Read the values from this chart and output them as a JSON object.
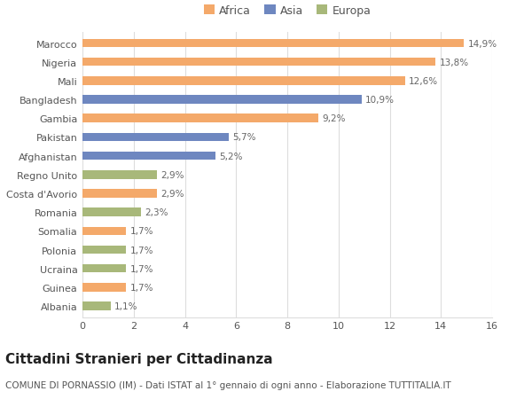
{
  "categories": [
    "Albania",
    "Guinea",
    "Ucraina",
    "Polonia",
    "Somalia",
    "Romania",
    "Costa d'Avorio",
    "Regno Unito",
    "Afghanistan",
    "Pakistan",
    "Gambia",
    "Bangladesh",
    "Mali",
    "Nigeria",
    "Marocco"
  ],
  "values": [
    1.1,
    1.7,
    1.7,
    1.7,
    1.7,
    2.3,
    2.9,
    2.9,
    5.2,
    5.7,
    9.2,
    10.9,
    12.6,
    13.8,
    14.9
  ],
  "colors": [
    "#a8b87a",
    "#f4a96a",
    "#a8b87a",
    "#a8b87a",
    "#f4a96a",
    "#a8b87a",
    "#f4a96a",
    "#a8b87a",
    "#6e87c0",
    "#6e87c0",
    "#f4a96a",
    "#6e87c0",
    "#f4a96a",
    "#f4a96a",
    "#f4a96a"
  ],
  "labels": [
    "1,1%",
    "1,7%",
    "1,7%",
    "1,7%",
    "1,7%",
    "2,3%",
    "2,9%",
    "2,9%",
    "5,2%",
    "5,7%",
    "9,2%",
    "10,9%",
    "12,6%",
    "13,8%",
    "14,9%"
  ],
  "legend_labels": [
    "Africa",
    "Asia",
    "Europa"
  ],
  "legend_colors": [
    "#f4a96a",
    "#6e87c0",
    "#a8b87a"
  ],
  "title": "Cittadini Stranieri per Cittadinanza",
  "subtitle": "COMUNE DI PORNASSIO (IM) - Dati ISTAT al 1° gennaio di ogni anno - Elaborazione TUTTITALIA.IT",
  "xlim": [
    0,
    16
  ],
  "xticks": [
    0,
    2,
    4,
    6,
    8,
    10,
    12,
    14,
    16
  ],
  "background_color": "#ffffff",
  "grid_color": "#dddddd",
  "bar_height": 0.45,
  "title_fontsize": 11,
  "subtitle_fontsize": 7.5,
  "label_fontsize": 7.5,
  "tick_fontsize": 8,
  "legend_fontsize": 9
}
